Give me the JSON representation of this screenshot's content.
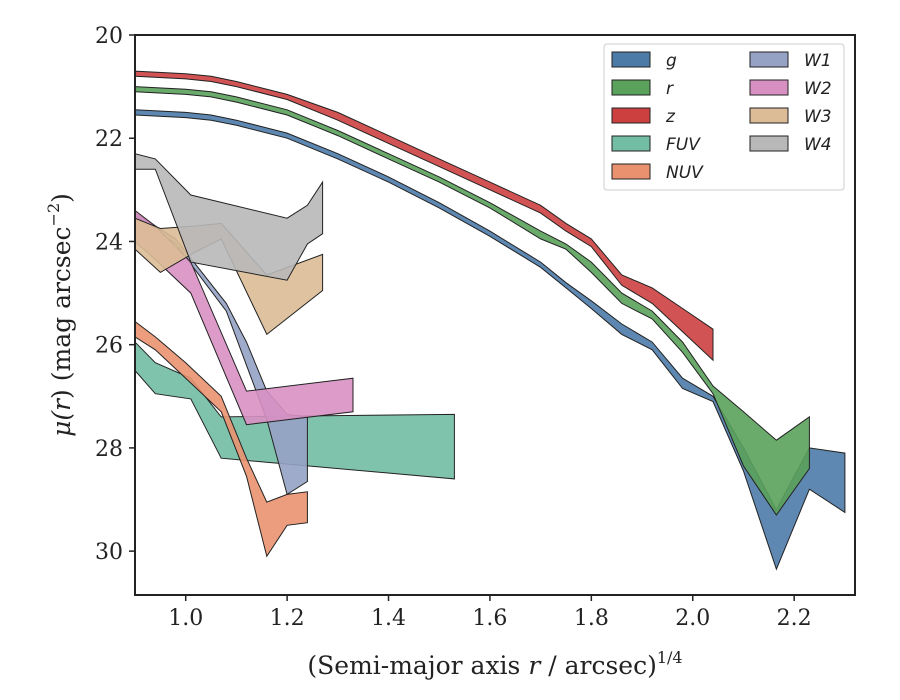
{
  "chart_data": {
    "type": "area",
    "title": "",
    "xlabel": "(Semi-major axis r / arcsec)",
    "xlabel_prefix": "(Semi-major axis ",
    "xlabel_var": "r",
    "xlabel_suffix": " / arcsec)",
    "xlabel_exponent": "1/4",
    "ylabel": "μ(r) (mag arcsec⁻²)",
    "ylabel_mu": "μ(",
    "ylabel_var": "r",
    "ylabel_rest": ") (mag arcsec",
    "ylabel_exponent": "−2",
    "ylabel_close": ")",
    "xlim": [
      0.9,
      2.32
    ],
    "ylim": [
      20.0,
      30.85
    ],
    "y_inverted": true,
    "xticks": [
      1.0,
      1.2,
      1.4,
      1.6,
      1.8,
      2.0,
      2.2
    ],
    "xtick_labels": [
      "1.0",
      "1.2",
      "1.4",
      "1.6",
      "1.8",
      "2.0",
      "2.2"
    ],
    "yticks": [
      20,
      22,
      24,
      26,
      28,
      30
    ],
    "ytick_labels": [
      "20",
      "22",
      "24",
      "26",
      "28",
      "30"
    ],
    "grid": false,
    "legend_position": "top-right",
    "legend_columns": 2,
    "series": [
      {
        "name": "g",
        "color": "#4c7ba8",
        "x": [
          0.9,
          1.0,
          1.05,
          1.1,
          1.2,
          1.3,
          1.4,
          1.5,
          1.6,
          1.7,
          1.75,
          1.8,
          1.86,
          1.92,
          1.98,
          2.04,
          2.1,
          2.165,
          2.23,
          2.3
        ],
        "y_upper": [
          21.45,
          21.5,
          21.55,
          21.65,
          21.9,
          22.3,
          22.75,
          23.25,
          23.8,
          24.4,
          24.8,
          25.15,
          25.6,
          25.95,
          26.65,
          27.0,
          28.0,
          29.2,
          28.0,
          28.1
        ],
        "y_lower": [
          21.55,
          21.6,
          21.65,
          21.75,
          22.0,
          22.4,
          22.85,
          23.35,
          23.9,
          24.5,
          24.9,
          25.3,
          25.8,
          26.1,
          26.85,
          27.1,
          28.45,
          30.35,
          28.8,
          29.25
        ]
      },
      {
        "name": "r",
        "color": "#5aa15b",
        "x": [
          0.9,
          1.0,
          1.05,
          1.1,
          1.2,
          1.3,
          1.4,
          1.5,
          1.6,
          1.7,
          1.75,
          1.8,
          1.86,
          1.92,
          1.98,
          2.04,
          2.1,
          2.165,
          2.23
        ],
        "y_upper": [
          21.0,
          21.05,
          21.1,
          21.2,
          21.45,
          21.85,
          22.3,
          22.75,
          23.25,
          23.8,
          24.05,
          24.4,
          25.0,
          25.35,
          25.95,
          26.8,
          27.3,
          27.85,
          27.4
        ],
        "y_lower": [
          21.1,
          21.15,
          21.2,
          21.3,
          21.55,
          21.95,
          22.4,
          22.85,
          23.35,
          23.95,
          24.15,
          24.6,
          25.2,
          25.5,
          26.15,
          26.95,
          28.35,
          29.3,
          28.4
        ]
      },
      {
        "name": "z",
        "color": "#cc4040",
        "x": [
          0.9,
          1.0,
          1.05,
          1.1,
          1.2,
          1.3,
          1.4,
          1.5,
          1.6,
          1.7,
          1.75,
          1.8,
          1.86,
          1.92,
          1.98,
          2.04
        ],
        "y_upper": [
          20.7,
          20.75,
          20.8,
          20.9,
          21.15,
          21.5,
          21.95,
          22.4,
          22.85,
          23.3,
          23.65,
          23.95,
          24.65,
          24.9,
          25.3,
          25.7
        ],
        "y_lower": [
          20.8,
          20.85,
          20.9,
          21.0,
          21.25,
          21.65,
          22.1,
          22.55,
          23.0,
          23.45,
          23.8,
          24.1,
          24.85,
          25.2,
          25.75,
          26.3
        ]
      },
      {
        "name": "FUV",
        "color": "#72bda4",
        "x": [
          0.9,
          0.94,
          1.01,
          1.07,
          1.53
        ],
        "y_upper": [
          25.95,
          26.35,
          26.65,
          27.4,
          27.35
        ],
        "y_lower": [
          26.5,
          26.95,
          27.05,
          28.2,
          28.6
        ]
      },
      {
        "name": "NUV",
        "color": "#ea9270",
        "x": [
          0.9,
          0.94,
          1.0,
          1.07,
          1.12,
          1.16,
          1.2,
          1.24
        ],
        "y_upper": [
          25.55,
          25.85,
          26.35,
          27.0,
          28.2,
          29.05,
          28.9,
          28.85
        ],
        "y_lower": [
          25.85,
          26.1,
          26.65,
          27.3,
          28.55,
          30.1,
          29.5,
          29.45
        ]
      },
      {
        "name": "W1",
        "color": "#95a2c4",
        "x": [
          0.9,
          0.98,
          1.08,
          1.12,
          1.16,
          1.2,
          1.24
        ],
        "y_upper": [
          23.45,
          23.95,
          25.2,
          25.95,
          26.9,
          27.35,
          27.4
        ],
        "y_lower": [
          23.5,
          24.05,
          25.35,
          26.4,
          27.45,
          28.9,
          28.65
        ]
      },
      {
        "name": "W2",
        "color": "#d890c3",
        "x": [
          0.9,
          0.94,
          1.01,
          1.12,
          1.33
        ],
        "y_upper": [
          23.4,
          23.7,
          24.4,
          26.9,
          26.65
        ],
        "y_lower": [
          24.0,
          24.35,
          25.0,
          27.55,
          27.3
        ]
      },
      {
        "name": "W3",
        "color": "#dcbc96",
        "x": [
          0.9,
          0.95,
          1.02,
          1.07,
          1.16,
          1.27
        ],
        "y_upper": [
          23.55,
          23.75,
          23.7,
          23.65,
          24.65,
          24.25
        ],
        "y_lower": [
          24.15,
          24.6,
          24.2,
          23.95,
          25.8,
          24.95
        ]
      },
      {
        "name": "W4",
        "color": "#b8b8b8",
        "x": [
          0.9,
          0.94,
          1.01,
          1.2,
          1.24,
          1.27
        ],
        "y_upper": [
          22.3,
          22.4,
          23.1,
          23.55,
          23.3,
          22.85
        ],
        "y_lower": [
          22.6,
          22.6,
          24.4,
          24.75,
          24.05,
          23.85
        ]
      }
    ]
  }
}
